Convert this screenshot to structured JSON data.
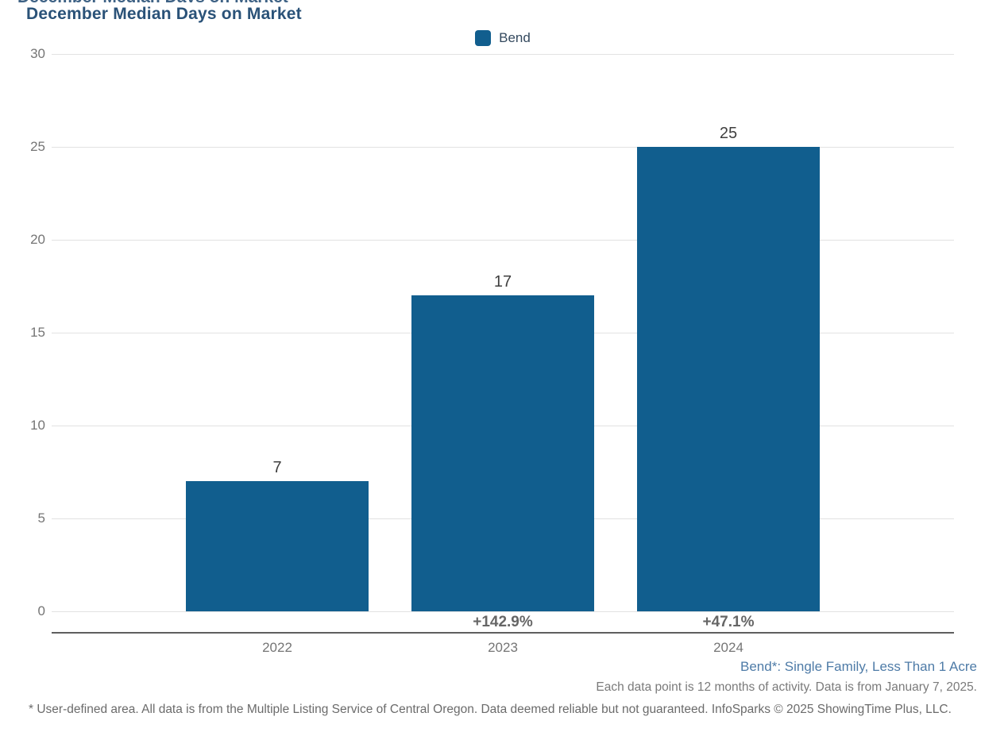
{
  "title": "December Median Days on Market",
  "legend": {
    "label": "Bend",
    "swatch_color": "#115e8e"
  },
  "chart_data": {
    "type": "bar",
    "title": "December Median Days on Market",
    "categories": [
      "2022",
      "2023",
      "2024"
    ],
    "series": [
      {
        "name": "Bend",
        "values": [
          7,
          17,
          25
        ]
      }
    ],
    "value_labels": [
      "7",
      "17",
      "25"
    ],
    "pct_change_labels": [
      "",
      "+142.9%",
      "+47.1%"
    ],
    "ylim": [
      0,
      30
    ],
    "yticks": [
      0,
      5,
      10,
      15,
      20,
      25,
      30
    ],
    "xlabel": "",
    "ylabel": "",
    "grid": true,
    "legend_position": "top-center",
    "bar_color": "#115e8e"
  },
  "footnotes": {
    "series_definition": "Bend*: Single Family, Less Than 1 Acre",
    "data_note": "Each data point is 12 months of activity. Data is from January 7, 2025.",
    "disclaimer": "* User-defined area. All data is from the Multiple Listing Service of Central Oregon. Data deemed reliable but not guaranteed. InfoSparks © 2025 ShowingTime Plus, LLC."
  },
  "colors": {
    "title": "#2a5278",
    "bar": "#115e8e",
    "gridline": "#e2e2e2",
    "axis_line": "#5f5f5f",
    "tick_text": "#757575",
    "value_text": "#3f3f3f",
    "pct_text": "#666666",
    "series_footnote_text": "#4e7ba7",
    "gray_footnote_text": "#6b6b6b"
  }
}
